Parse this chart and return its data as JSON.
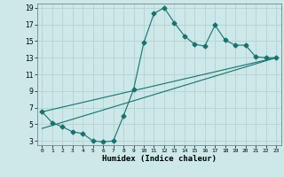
{
  "xlabel": "Humidex (Indice chaleur)",
  "bg_color": "#cce8e8",
  "grid_color": "#b8d4d4",
  "line_color": "#1a7070",
  "xlim": [
    -0.5,
    23.5
  ],
  "ylim": [
    2.5,
    19.5
  ],
  "xticks": [
    0,
    1,
    2,
    3,
    4,
    5,
    6,
    7,
    8,
    9,
    10,
    11,
    12,
    13,
    14,
    15,
    16,
    17,
    18,
    19,
    20,
    21,
    22,
    23
  ],
  "yticks": [
    3,
    5,
    7,
    9,
    11,
    13,
    15,
    17,
    19
  ],
  "line1_x": [
    0,
    1,
    2,
    3,
    4,
    5,
    6,
    7,
    8,
    9,
    10,
    11,
    12,
    13,
    14,
    15,
    16,
    17,
    18,
    19,
    20,
    21,
    22,
    23
  ],
  "line1_y": [
    6.5,
    5.2,
    4.7,
    4.1,
    3.9,
    3.0,
    2.9,
    3.0,
    6.0,
    9.2,
    14.8,
    18.3,
    19.0,
    17.2,
    15.6,
    14.6,
    14.4,
    16.9,
    15.1,
    14.5,
    14.5,
    13.1,
    13.0,
    13.0
  ],
  "line2_x": [
    0,
    23
  ],
  "line2_y": [
    4.5,
    13.0
  ],
  "line3_x": [
    0,
    23
  ],
  "line3_y": [
    6.5,
    13.0
  ],
  "marker_size": 2.5
}
